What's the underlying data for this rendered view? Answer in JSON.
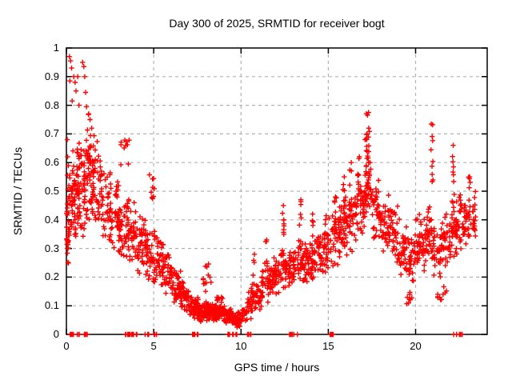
{
  "chart_data": {
    "type": "scatter",
    "title": "Day 300 of 2025, SRMTID for receiver bogt",
    "xlabel": "GPS time / hours",
    "ylabel": "SRMTID / TECUs",
    "xlim": [
      0,
      24.1
    ],
    "ylim": [
      0,
      1
    ],
    "xticks": [
      0,
      5,
      10,
      15,
      20
    ],
    "xtick_labels": [
      "0",
      "5",
      "10",
      "15",
      "20"
    ],
    "yticks": [
      0,
      0.1,
      0.2,
      0.3,
      0.4,
      0.5,
      0.6,
      0.7,
      0.8,
      0.9,
      1
    ],
    "ytick_labels": [
      "0",
      "0.1",
      "0.2",
      "0.3",
      "0.4",
      "0.5",
      "0.6",
      "0.7",
      "0.8",
      "0.9",
      "1"
    ],
    "grid": true,
    "legend": "none",
    "marker": "plus",
    "marker_color": "#ff0000",
    "grid_color": "#b3b3b3",
    "axis_color": "#000000",
    "seed": 1234,
    "density_bands": [
      [
        0.0,
        0.12,
        0.23,
        0.47,
        26
      ],
      [
        0.05,
        0.55,
        0.27,
        0.63,
        40
      ],
      [
        0.3,
        0.75,
        0.3,
        0.7,
        30
      ],
      [
        0.55,
        1.05,
        0.32,
        0.72,
        46
      ],
      [
        1.0,
        1.5,
        0.36,
        0.74,
        48
      ],
      [
        1.2,
        1.65,
        0.55,
        0.78,
        14
      ],
      [
        1.5,
        2.05,
        0.38,
        0.68,
        44
      ],
      [
        2.0,
        2.55,
        0.3,
        0.6,
        40
      ],
      [
        2.5,
        3.05,
        0.27,
        0.56,
        40
      ],
      [
        3.0,
        3.55,
        0.24,
        0.5,
        42
      ],
      [
        3.1,
        3.6,
        0.55,
        0.73,
        10
      ],
      [
        3.5,
        4.05,
        0.22,
        0.48,
        40
      ],
      [
        4.0,
        4.55,
        0.2,
        0.43,
        40
      ],
      [
        4.5,
        5.05,
        0.17,
        0.4,
        40
      ],
      [
        4.7,
        5.05,
        0.45,
        0.58,
        9
      ],
      [
        5.0,
        5.55,
        0.16,
        0.36,
        40
      ],
      [
        5.5,
        6.05,
        0.13,
        0.3,
        42
      ],
      [
        6.0,
        6.55,
        0.1,
        0.24,
        44
      ],
      [
        6.5,
        7.05,
        0.07,
        0.19,
        46
      ],
      [
        7.0,
        7.55,
        0.05,
        0.14,
        48
      ],
      [
        7.5,
        8.05,
        0.04,
        0.12,
        50
      ],
      [
        7.75,
        8.3,
        0.13,
        0.26,
        12
      ],
      [
        8.0,
        8.55,
        0.04,
        0.11,
        52
      ],
      [
        8.5,
        9.05,
        0.04,
        0.12,
        50
      ],
      [
        8.6,
        8.95,
        0.11,
        0.15,
        8
      ],
      [
        9.0,
        9.55,
        0.03,
        0.1,
        48
      ],
      [
        9.5,
        10.05,
        0.02,
        0.08,
        46
      ],
      [
        10.05,
        10.35,
        0.03,
        0.1,
        20
      ],
      [
        10.35,
        10.75,
        0.05,
        0.17,
        26
      ],
      [
        10.75,
        11.2,
        0.07,
        0.21,
        30
      ],
      [
        11.2,
        11.7,
        0.1,
        0.26,
        34
      ],
      [
        11.7,
        12.2,
        0.12,
        0.29,
        36
      ],
      [
        12.2,
        12.7,
        0.15,
        0.33,
        38
      ],
      [
        12.7,
        13.2,
        0.15,
        0.31,
        36
      ],
      [
        13.2,
        13.7,
        0.17,
        0.34,
        38
      ],
      [
        13.7,
        14.2,
        0.17,
        0.34,
        36
      ],
      [
        14.2,
        14.7,
        0.18,
        0.37,
        36
      ],
      [
        14.7,
        15.2,
        0.2,
        0.42,
        38
      ],
      [
        15.2,
        15.7,
        0.23,
        0.46,
        38
      ],
      [
        15.7,
        16.2,
        0.26,
        0.5,
        38
      ],
      [
        16.2,
        16.7,
        0.28,
        0.53,
        36
      ],
      [
        16.7,
        17.1,
        0.32,
        0.58,
        30
      ],
      [
        17.1,
        17.5,
        0.38,
        0.62,
        26
      ],
      [
        17.5,
        18.0,
        0.3,
        0.55,
        36
      ],
      [
        18.0,
        18.5,
        0.27,
        0.5,
        38
      ],
      [
        18.5,
        19.0,
        0.23,
        0.47,
        38
      ],
      [
        19.0,
        19.5,
        0.17,
        0.42,
        36
      ],
      [
        19.5,
        20.0,
        0.14,
        0.38,
        34
      ],
      [
        19.45,
        19.95,
        0.09,
        0.16,
        8
      ],
      [
        20.0,
        20.5,
        0.2,
        0.44,
        38
      ],
      [
        20.5,
        21.0,
        0.22,
        0.47,
        38
      ],
      [
        21.0,
        21.5,
        0.18,
        0.44,
        36
      ],
      [
        21.2,
        21.8,
        0.09,
        0.18,
        10
      ],
      [
        21.5,
        22.0,
        0.2,
        0.43,
        36
      ],
      [
        22.0,
        22.5,
        0.24,
        0.5,
        38
      ],
      [
        22.5,
        23.0,
        0.26,
        0.5,
        38
      ],
      [
        23.0,
        23.45,
        0.28,
        0.52,
        30
      ]
    ],
    "spike_clusters": [
      [
        10.7,
        0.12,
        0.28,
        8
      ],
      [
        11.45,
        0.2,
        0.33,
        7
      ],
      [
        12.4,
        0.25,
        0.45,
        10
      ],
      [
        13.4,
        0.28,
        0.47,
        9
      ],
      [
        14.1,
        0.28,
        0.42,
        7
      ],
      [
        15.4,
        0.35,
        0.48,
        6
      ],
      [
        15.9,
        0.4,
        0.55,
        8
      ],
      [
        16.3,
        0.42,
        0.6,
        8
      ],
      [
        16.75,
        0.45,
        0.62,
        7
      ],
      [
        17.15,
        0.45,
        0.7,
        12
      ],
      [
        17.25,
        0.5,
        0.775,
        12
      ],
      [
        17.35,
        0.45,
        0.72,
        10
      ],
      [
        20.95,
        0.48,
        0.735,
        10
      ],
      [
        22.15,
        0.45,
        0.66,
        9
      ],
      [
        23.1,
        0.4,
        0.55,
        7
      ]
    ],
    "zero_value_runs": [
      [
        0.15,
        0.45,
        5
      ],
      [
        0.6,
        0.78,
        4
      ],
      [
        1.0,
        1.3,
        5
      ],
      [
        3.35,
        4.05,
        14
      ],
      [
        4.5,
        4.75,
        4
      ],
      [
        5.0,
        5.2,
        4
      ],
      [
        7.2,
        7.95,
        8
      ],
      [
        9.2,
        9.8,
        8
      ],
      [
        10.3,
        10.6,
        5
      ],
      [
        12.75,
        13.35,
        6
      ],
      [
        15.05,
        15.35,
        9
      ],
      [
        22.15,
        22.7,
        6
      ]
    ],
    "outlier_points": [
      [
        0.17,
        0.97
      ],
      [
        0.24,
        0.955
      ],
      [
        0.3,
        0.93
      ],
      [
        0.42,
        0.9
      ],
      [
        0.2,
        0.885
      ],
      [
        0.55,
        0.85
      ],
      [
        0.93,
        0.95
      ],
      [
        1.0,
        0.935
      ],
      [
        1.05,
        0.9
      ],
      [
        0.65,
        0.9
      ],
      [
        0.5,
        0.88
      ],
      [
        1.1,
        0.845
      ],
      [
        0.33,
        0.815
      ],
      [
        0.72,
        0.8
      ],
      [
        1.15,
        0.795
      ],
      [
        1.28,
        0.77
      ],
      [
        0.05,
        0.68
      ],
      [
        0.07,
        0.62
      ],
      [
        1.35,
        0.75
      ],
      [
        1.45,
        0.72
      ]
    ]
  }
}
